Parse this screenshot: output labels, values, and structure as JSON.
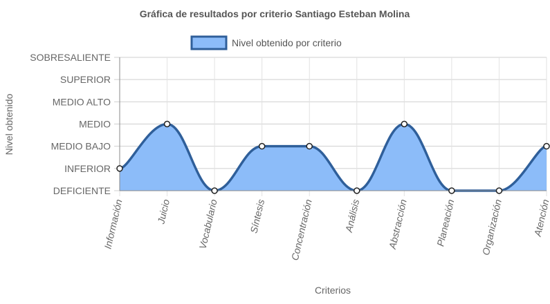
{
  "chart_data": {
    "type": "area",
    "title": "Gráfica de resultados por criterio Santiago Esteban Molina",
    "xlabel": "Criterios",
    "ylabel": "Nivel obtenido",
    "categories": [
      "Información",
      "Juicio",
      "Vocabulario",
      "Síntesis",
      "Concentración",
      "Análisis",
      "Abstracción",
      "Planeación",
      "Organización",
      "Atención"
    ],
    "y_levels": [
      "DEFICIENTE",
      "INFERIOR",
      "MEDIO BAJO",
      "MEDIO",
      "MEDIO ALTO",
      "SUPERIOR",
      "SOBRESALIENTE"
    ],
    "ylim": [
      0,
      6
    ],
    "grid": true,
    "legend_position": "top-center",
    "series": [
      {
        "name": "Nivel obtenido por criterio",
        "values": [
          1,
          3,
          0,
          2,
          2,
          0,
          3,
          0,
          0,
          2
        ],
        "fill_color": "#8cbcf9",
        "line_color": "#2f5f9a"
      }
    ]
  }
}
